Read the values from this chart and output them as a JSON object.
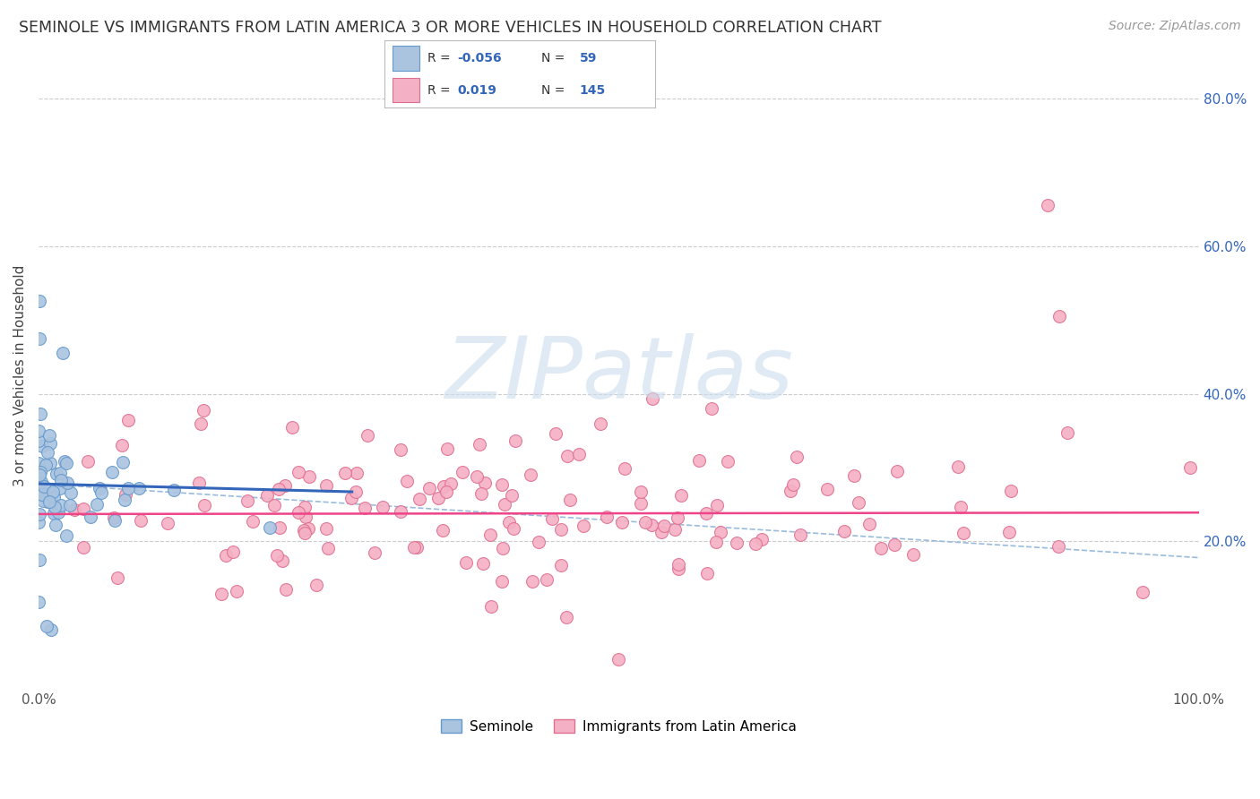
{
  "title": "SEMINOLE VS IMMIGRANTS FROM LATIN AMERICA 3 OR MORE VEHICLES IN HOUSEHOLD CORRELATION CHART",
  "source": "Source: ZipAtlas.com",
  "ylabel": "3 or more Vehicles in Household",
  "xlim": [
    0.0,
    1.0
  ],
  "ylim": [
    0.0,
    0.85
  ],
  "yticks": [
    0.2,
    0.4,
    0.6,
    0.8
  ],
  "ytick_labels_right": [
    "20.0%",
    "40.0%",
    "60.0%",
    "80.0%"
  ],
  "xticks": [
    0.0,
    0.2,
    0.4,
    0.6,
    0.8,
    1.0
  ],
  "xtick_labels": [
    "0.0%",
    "",
    "",
    "",
    "",
    "100.0%"
  ],
  "R1": -0.056,
  "N1": 59,
  "R2": 0.019,
  "N2": 145,
  "series1_color": "#aac4e0",
  "series1_edge": "#6699cc",
  "series2_color": "#f4b0c4",
  "series2_edge": "#e07090",
  "line1_color": "#3366bb",
  "line2_color": "#ee4488",
  "dash_color": "#99bbdd",
  "watermark": "ZIPatlas",
  "watermark_color": "#ccdded",
  "grid_color": "#cccccc",
  "background_color": "#ffffff",
  "legend_text_color": "#333333",
  "legend_val_color": "#3366bb",
  "right_axis_color": "#3366bb",
  "title_color": "#333333",
  "source_color": "#999999"
}
